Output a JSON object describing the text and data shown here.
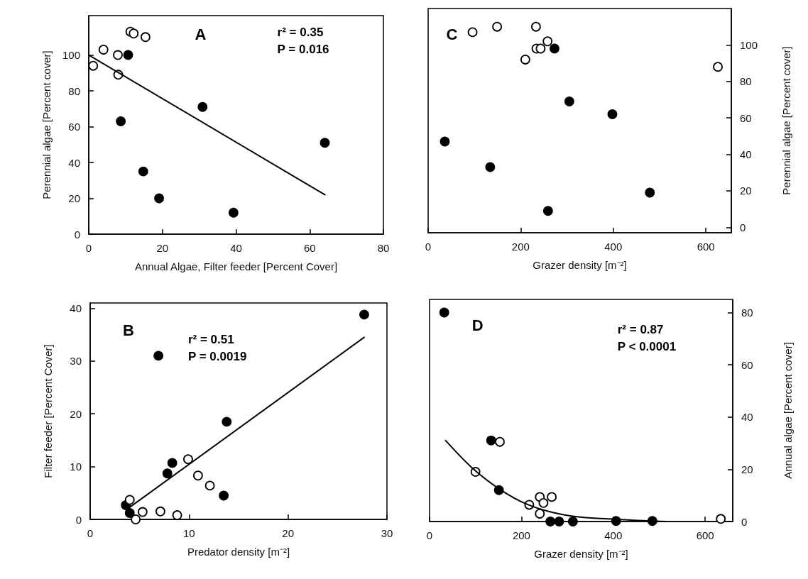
{
  "chart_data": [
    {
      "type": "scatter",
      "title": "A",
      "xlabel": "Annual Algae, Filter feeder [Percent Cover]",
      "ylabel": "Perennial algae [Percent cover]",
      "annotations": [
        "r² = 0.35",
        "P = 0.016"
      ],
      "xlim": [
        0,
        80
      ],
      "xticks": [
        0,
        20,
        40,
        60,
        80
      ],
      "ylim": [
        0,
        122
      ],
      "yticks": [
        0,
        20,
        40,
        60,
        80,
        100
      ],
      "grid": false,
      "marker": "circle",
      "series": [
        {
          "color": "#000000",
          "x": [
            10.7,
            30.9,
            8.7,
            64.1,
            14.8,
            19.1,
            39.3
          ],
          "values": [
            100,
            71,
            63,
            51,
            35,
            20,
            12
          ]
        },
        {
          "color": "#ffffff",
          "x": [
            1.2,
            4.0,
            7.9,
            8.0,
            11.3,
            12.2,
            15.4
          ],
          "values": [
            94,
            103,
            100,
            89,
            113,
            112,
            110
          ]
        },
        {
          "type": "line",
          "marker": "none",
          "color": "#000000",
          "x": [
            0,
            64.1
          ],
          "values": [
            100,
            22
          ]
        }
      ]
    },
    {
      "type": "scatter",
      "title": "C",
      "xlabel": "Grazer density [m⁻²]",
      "y2label": "Perennial algae [Percent cover]",
      "xlim": [
        0,
        655
      ],
      "xticks": [
        0,
        200,
        400,
        600
      ],
      "y2lim": [
        -3,
        120
      ],
      "y2ticks": [
        0,
        20,
        40,
        60,
        80,
        100
      ],
      "grid": false,
      "marker": "circle",
      "series": [
        {
          "axis": "y2",
          "color": "#000000",
          "x": [
            36,
            134,
            259,
            273,
            305,
            398,
            479
          ],
          "values": [
            47,
            33,
            9,
            98,
            69,
            62,
            19
          ]
        },
        {
          "axis": "y2",
          "color": "#ffffff",
          "x": [
            96,
            149,
            233,
            210,
            234,
            243,
            258,
            626
          ],
          "values": [
            107,
            110,
            110,
            92,
            98,
            98,
            102,
            88
          ]
        }
      ]
    },
    {
      "type": "scatter",
      "title": "B",
      "xlabel": "Predator density [m⁻²]",
      "ylabel": "Filter feeder [Percent Cover]",
      "annotations": [
        "r² = 0.51",
        "P = 0.0019"
      ],
      "xlim": [
        0,
        30
      ],
      "xticks": [
        0,
        10,
        20,
        30
      ],
      "ylim": [
        0,
        41
      ],
      "yticks": [
        0,
        10,
        20,
        30,
        40
      ],
      "grid": false,
      "marker": "circle",
      "series": [
        {
          "color": "#000000",
          "x": [
            27.7,
            6.9,
            13.8,
            8.3,
            7.8,
            13.5,
            3.6,
            4.0
          ],
          "values": [
            38.8,
            31.0,
            18.5,
            10.7,
            8.7,
            4.5,
            2.7,
            1.2
          ]
        },
        {
          "color": "#ffffff",
          "x": [
            9.9,
            10.9,
            12.1,
            4.0,
            5.3,
            7.1,
            8.8,
            4.6
          ],
          "values": [
            11.4,
            8.3,
            6.4,
            3.7,
            1.4,
            1.5,
            0.8,
            0
          ]
        },
        {
          "type": "line",
          "marker": "none",
          "color": "#000000",
          "x": [
            4.0,
            27.7
          ],
          "values": [
            2.3,
            34.5
          ]
        }
      ]
    },
    {
      "type": "scatter",
      "title": "D",
      "xlabel": "Grazer density [m⁻²]",
      "y2label": "Annual algae [Percent cover]",
      "annotations": [
        "r² = 0.87",
        "P < 0.0001"
      ],
      "xlim": [
        0,
        660
      ],
      "xticks": [
        0,
        200,
        400,
        600
      ],
      "y2lim": [
        0,
        85
      ],
      "y2ticks": [
        0,
        20,
        40,
        60,
        80
      ],
      "grid": false,
      "marker": "circle",
      "series": [
        {
          "axis": "y2",
          "color": "#000000",
          "x": [
            32,
            134,
            151,
            263,
            282,
            312,
            406,
            485
          ],
          "values": [
            80,
            31,
            12,
            0,
            0,
            0,
            0.2,
            0.2
          ]
        },
        {
          "axis": "y2",
          "color": "#ffffff",
          "x": [
            153,
            100,
            217,
            240,
            248,
            266,
            240,
            634
          ],
          "values": [
            30.5,
            19,
            6.4,
            9.4,
            7.1,
            9.4,
            3,
            1
          ]
        },
        {
          "type": "line",
          "axis": "y2",
          "marker": "none",
          "color": "#000000",
          "x": [
            35,
            96,
            154,
            212,
            270,
            328,
            387,
            445,
            514
          ],
          "values": [
            31,
            20,
            12.2,
            6.6,
            3.4,
            1.7,
            1,
            0.5,
            0
          ]
        }
      ]
    }
  ]
}
